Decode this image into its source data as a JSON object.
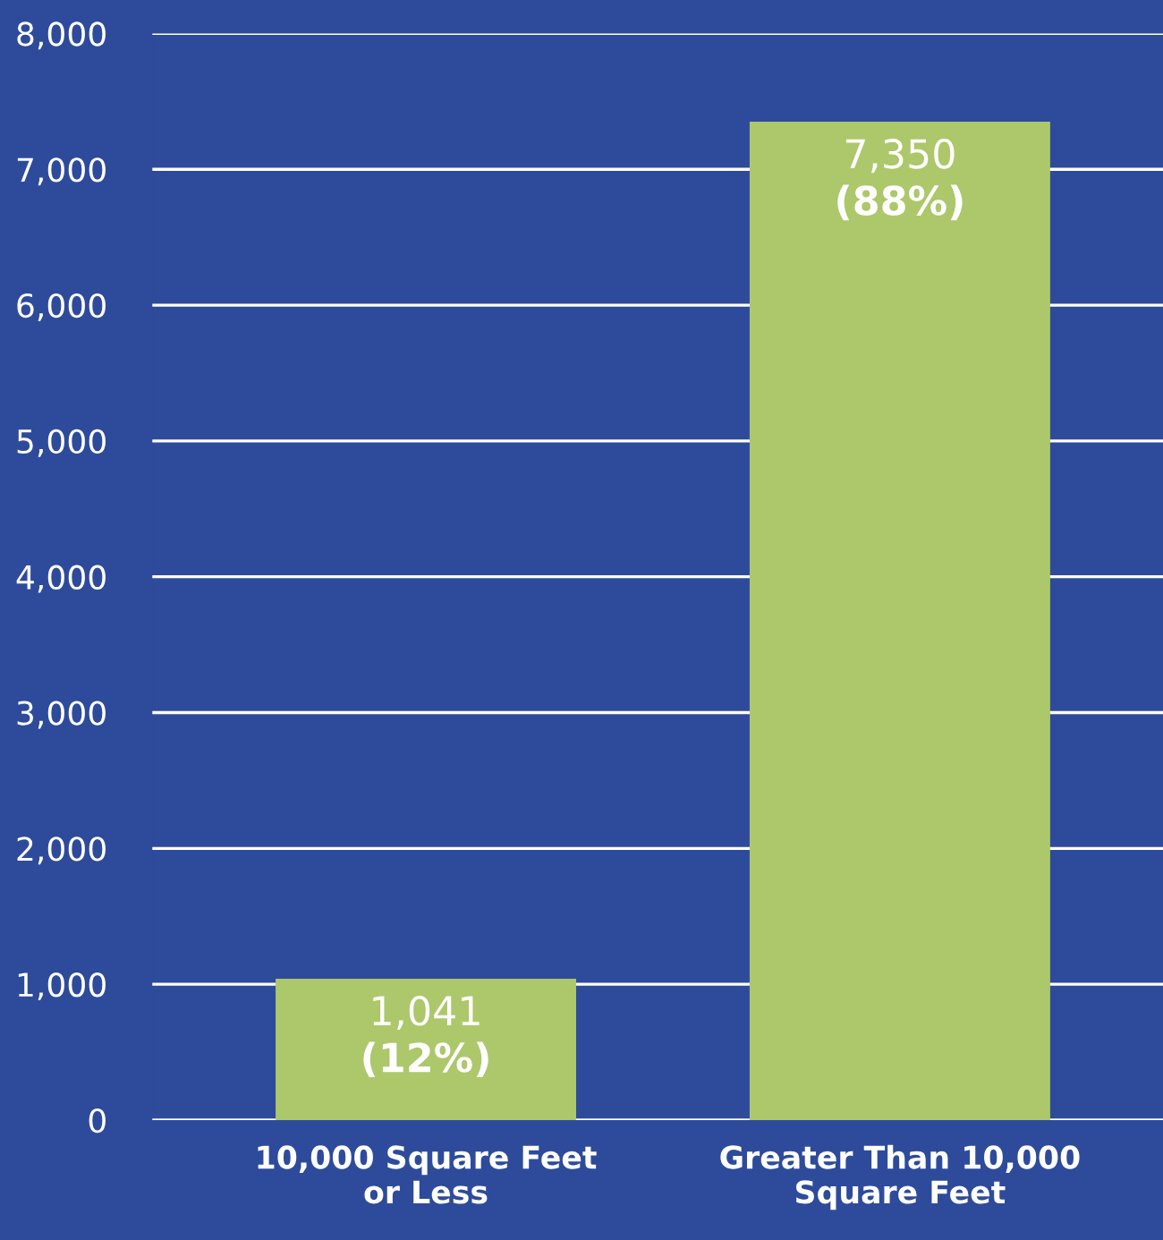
{
  "chart_data": {
    "type": "bar",
    "categories": [
      "10,000 Square Feet\nor Less",
      "Greater Than 10,000\nSquare Feet"
    ],
    "values": [
      1041,
      7350
    ],
    "color": "#adc76b",
    "value_labels": [
      "1,041\n(12%)",
      "7,350\n(88%)"
    ],
    "ylim": [
      0,
      8000
    ],
    "yticks": [
      {
        "value": 0,
        "label": "0"
      },
      {
        "value": 1000,
        "label": "1,000"
      },
      {
        "value": 2000,
        "label": "2,000"
      },
      {
        "value": 3000,
        "label": "3,000"
      },
      {
        "value": 4000,
        "label": "4,000"
      },
      {
        "value": 5000,
        "label": "5,000"
      },
      {
        "value": 6000,
        "label": "6,000"
      },
      {
        "value": 7000,
        "label": "7,000"
      },
      {
        "value": 8000,
        "label": "8,000"
      }
    ],
    "grid": "y"
  }
}
